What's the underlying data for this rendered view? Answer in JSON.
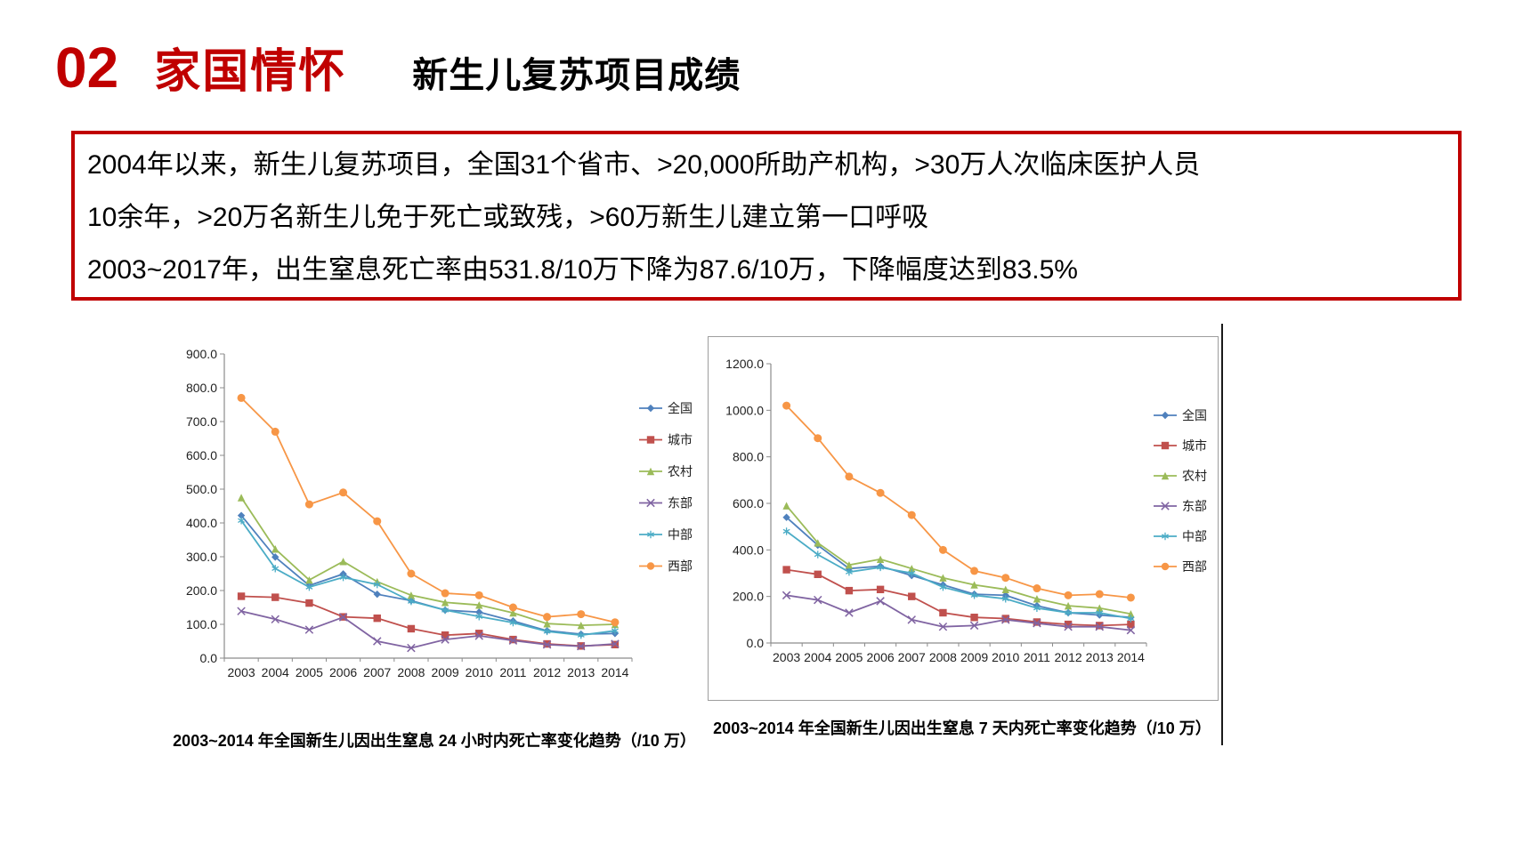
{
  "theme": {
    "accent_red": "#c00000",
    "text_black": "#000000",
    "axis_gray": "#8c8c8c",
    "frame_gray": "#9d9d9d"
  },
  "header": {
    "number": "02",
    "title": "家国情怀",
    "subtitle": "新生儿复苏项目成绩"
  },
  "infobox": {
    "lines": [
      "2004年以来，新生儿复苏项目，全国31个省市、>20,000所助产机构，>30万人次临床医护人员",
      "10余年，>20万名新生儿免于死亡或致残，>60万新生儿建立第一口呼吸",
      "2003~2017年，出生窒息死亡率由531.8/10万下降为87.6/10万，下降幅度达到83.5%"
    ]
  },
  "chart_data": [
    {
      "type": "line",
      "caption": "2003~2014 年全国新生儿因出生窒息 24 小时内死亡率变化趋势（/10 万）",
      "x": [
        "2003",
        "2004",
        "2005",
        "2006",
        "2007",
        "2008",
        "2009",
        "2010",
        "2011",
        "2012",
        "2013",
        "2014"
      ],
      "xlabel": "",
      "ylabel": "",
      "ylim": [
        0,
        900
      ],
      "ytick_step": 100,
      "yticks": [
        "0.0",
        "100.0",
        "200.0",
        "300.0",
        "400.0",
        "500.0",
        "600.0",
        "700.0",
        "800.0",
        "900.0"
      ],
      "grid": false,
      "legend_position": "right",
      "series": [
        {
          "name": "全国",
          "marker": "diamond",
          "color": "#4F81BD",
          "values": [
            422,
            299,
            215,
            249,
            189,
            170,
            142,
            136,
            110,
            81,
            71,
            73
          ]
        },
        {
          "name": "城市",
          "marker": "square",
          "color": "#C0504D",
          "values": [
            183,
            180,
            163,
            122,
            118,
            87,
            68,
            73,
            55,
            42,
            36,
            40
          ]
        },
        {
          "name": "农村",
          "marker": "triangle",
          "color": "#9BBB59",
          "values": [
            475,
            323,
            231,
            286,
            226,
            186,
            165,
            157,
            134,
            102,
            97,
            100
          ]
        },
        {
          "name": "东部",
          "marker": "x",
          "color": "#8064A2",
          "values": [
            139,
            115,
            84,
            121,
            50,
            30,
            55,
            66,
            52,
            40,
            35,
            42
          ]
        },
        {
          "name": "中部",
          "marker": "asterisk",
          "color": "#4BACC6",
          "values": [
            407,
            265,
            210,
            239,
            218,
            168,
            142,
            123,
            105,
            79,
            68,
            81
          ]
        },
        {
          "name": "西部",
          "marker": "circle",
          "color": "#F79646",
          "values": [
            770,
            670,
            455,
            490,
            405,
            250,
            192,
            186,
            150,
            122,
            130,
            106
          ]
        }
      ]
    },
    {
      "type": "line",
      "caption": "2003~2014 年全国新生儿因出生窒息 7 天内死亡率变化趋势（/10 万）",
      "x": [
        "2003",
        "2004",
        "2005",
        "2006",
        "2007",
        "2008",
        "2009",
        "2010",
        "2011",
        "2012",
        "2013",
        "2014"
      ],
      "xlabel": "",
      "ylabel": "",
      "ylim": [
        0,
        1200
      ],
      "ytick_step": 200,
      "yticks": [
        "0.0",
        "200.0",
        "400.0",
        "600.0",
        "800.0",
        "1000.0",
        "1200.0"
      ],
      "grid": false,
      "legend_position": "right",
      "series": [
        {
          "name": "全国",
          "marker": "diamond",
          "color": "#4F81BD",
          "values": [
            540,
            420,
            320,
            330,
            290,
            250,
            210,
            205,
            160,
            130,
            120,
            110
          ]
        },
        {
          "name": "城市",
          "marker": "square",
          "color": "#C0504D",
          "values": [
            315,
            295,
            225,
            230,
            200,
            130,
            110,
            105,
            90,
            80,
            75,
            80
          ]
        },
        {
          "name": "农村",
          "marker": "triangle",
          "color": "#9BBB59",
          "values": [
            590,
            430,
            335,
            360,
            320,
            280,
            250,
            230,
            190,
            160,
            150,
            125
          ]
        },
        {
          "name": "东部",
          "marker": "x",
          "color": "#8064A2",
          "values": [
            205,
            185,
            130,
            180,
            100,
            70,
            75,
            100,
            85,
            70,
            70,
            55
          ]
        },
        {
          "name": "中部",
          "marker": "asterisk",
          "color": "#4BACC6",
          "values": [
            480,
            380,
            305,
            325,
            300,
            240,
            205,
            190,
            150,
            130,
            130,
            105
          ]
        },
        {
          "name": "西部",
          "marker": "circle",
          "color": "#F79646",
          "values": [
            1020,
            880,
            715,
            645,
            550,
            400,
            310,
            280,
            235,
            205,
            210,
            195
          ]
        }
      ]
    }
  ]
}
